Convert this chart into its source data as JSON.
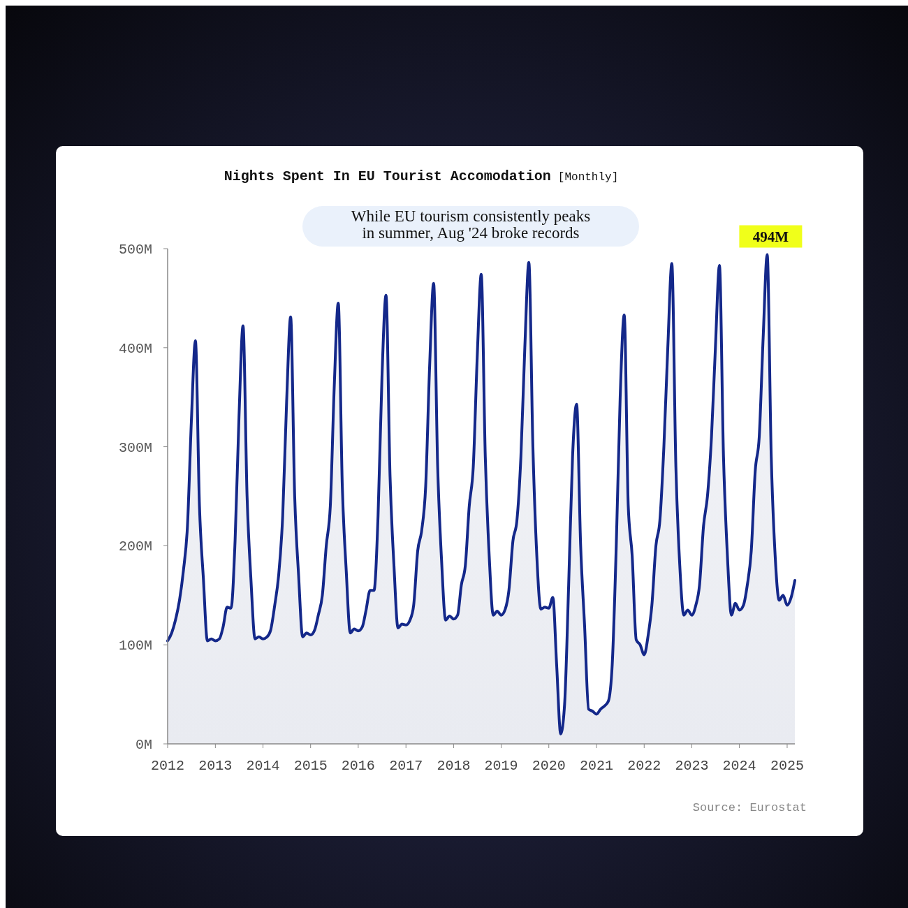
{
  "chart_data": {
    "type": "area",
    "title": "Nights Spent In EU Tourist Accomodation",
    "subtitle": "[Monthly]",
    "annotations": [
      "While EU tourism consistently peaks in summer, Aug '24 broke records",
      {
        "text": "494M",
        "x": "2024-08",
        "y": 494
      },
      "Source: Eurostat"
    ],
    "x": [
      "2012-01",
      "2012-02",
      "2012-03",
      "2012-04",
      "2012-05",
      "2012-06",
      "2012-07",
      "2012-08",
      "2012-09",
      "2012-10",
      "2012-11",
      "2012-12",
      "2013-01",
      "2013-02",
      "2013-03",
      "2013-04",
      "2013-05",
      "2013-06",
      "2013-07",
      "2013-08",
      "2013-09",
      "2013-10",
      "2013-11",
      "2013-12",
      "2014-01",
      "2014-02",
      "2014-03",
      "2014-04",
      "2014-05",
      "2014-06",
      "2014-07",
      "2014-08",
      "2014-09",
      "2014-10",
      "2014-11",
      "2014-12",
      "2015-01",
      "2015-02",
      "2015-03",
      "2015-04",
      "2015-05",
      "2015-06",
      "2015-07",
      "2015-08",
      "2015-09",
      "2015-10",
      "2015-11",
      "2015-12",
      "2016-01",
      "2016-02",
      "2016-03",
      "2016-04",
      "2016-05",
      "2016-06",
      "2016-07",
      "2016-08",
      "2016-09",
      "2016-10",
      "2016-11",
      "2016-12",
      "2017-01",
      "2017-02",
      "2017-03",
      "2017-04",
      "2017-05",
      "2017-06",
      "2017-07",
      "2017-08",
      "2017-09",
      "2017-10",
      "2017-11",
      "2017-12",
      "2018-01",
      "2018-02",
      "2018-03",
      "2018-04",
      "2018-05",
      "2018-06",
      "2018-07",
      "2018-08",
      "2018-09",
      "2018-10",
      "2018-11",
      "2018-12",
      "2019-01",
      "2019-02",
      "2019-03",
      "2019-04",
      "2019-05",
      "2019-06",
      "2019-07",
      "2019-08",
      "2019-09",
      "2019-10",
      "2019-11",
      "2019-12",
      "2020-01",
      "2020-02",
      "2020-03",
      "2020-04",
      "2020-05",
      "2020-06",
      "2020-07",
      "2020-08",
      "2020-09",
      "2020-10",
      "2020-11",
      "2020-12",
      "2021-01",
      "2021-02",
      "2021-03",
      "2021-04",
      "2021-05",
      "2021-06",
      "2021-07",
      "2021-08",
      "2021-09",
      "2021-10",
      "2021-11",
      "2021-12",
      "2022-01",
      "2022-02",
      "2022-03",
      "2022-04",
      "2022-05",
      "2022-06",
      "2022-07",
      "2022-08",
      "2022-09",
      "2022-10",
      "2022-11",
      "2022-12",
      "2023-01",
      "2023-02",
      "2023-03",
      "2023-04",
      "2023-05",
      "2023-06",
      "2023-07",
      "2023-08",
      "2023-09",
      "2023-10",
      "2023-11",
      "2023-12",
      "2024-01",
      "2024-02",
      "2024-03",
      "2024-04",
      "2024-05",
      "2024-06",
      "2024-07",
      "2024-08",
      "2024-09",
      "2024-10",
      "2024-11",
      "2024-12",
      "2025-01",
      "2025-02",
      "2025-03"
    ],
    "series": [
      {
        "color": "#14288a",
        "values": [
          104,
          112,
          125,
          145,
          175,
          220,
          326,
          407,
          240,
          167,
          104,
          106,
          104,
          106,
          118,
          138,
          137,
          205,
          330,
          422,
          250,
          165,
          106,
          108,
          106,
          108,
          115,
          140,
          170,
          230,
          345,
          431,
          250,
          170,
          108,
          112,
          110,
          115,
          130,
          150,
          200,
          240,
          360,
          445,
          260,
          175,
          112,
          116,
          114,
          118,
          135,
          155,
          155,
          230,
          370,
          453,
          270,
          180,
          117,
          121,
          120,
          125,
          140,
          195,
          215,
          260,
          380,
          465,
          280,
          185,
          125,
          129,
          126,
          130,
          160,
          180,
          240,
          280,
          390,
          474,
          290,
          190,
          130,
          134,
          130,
          136,
          155,
          205,
          225,
          290,
          400,
          486,
          300,
          190,
          136,
          138,
          137,
          148,
          80,
          10,
          40,
          160,
          290,
          343,
          200,
          120,
          35,
          33,
          30,
          35,
          38,
          43,
          80,
          200,
          350,
          433,
          240,
          190,
          105,
          100,
          90,
          110,
          140,
          200,
          225,
          300,
          400,
          485,
          280,
          180,
          130,
          135,
          130,
          140,
          160,
          220,
          250,
          310,
          400,
          483,
          290,
          190,
          130,
          142,
          135,
          140,
          160,
          195,
          275,
          310,
          410,
          494,
          290,
          190,
          145,
          150,
          140,
          148,
          165
        ]
      }
    ],
    "xlim": [
      "2012-01",
      "2025-03"
    ],
    "xticks": [
      "2012",
      "2013",
      "2014",
      "2015",
      "2016",
      "2017",
      "2018",
      "2019",
      "2020",
      "2021",
      "2022",
      "2023",
      "2024",
      "2025"
    ],
    "ylim": [
      0,
      500
    ],
    "yticks": [
      {
        "value": 0,
        "label": "0M"
      },
      {
        "value": 100,
        "label": "100M"
      },
      {
        "value": 200,
        "label": "200M"
      },
      {
        "value": 300,
        "label": "300M"
      },
      {
        "value": 400,
        "label": "400M"
      },
      {
        "value": 500,
        "label": "500M"
      }
    ],
    "grid": false,
    "line_style": "solid"
  }
}
